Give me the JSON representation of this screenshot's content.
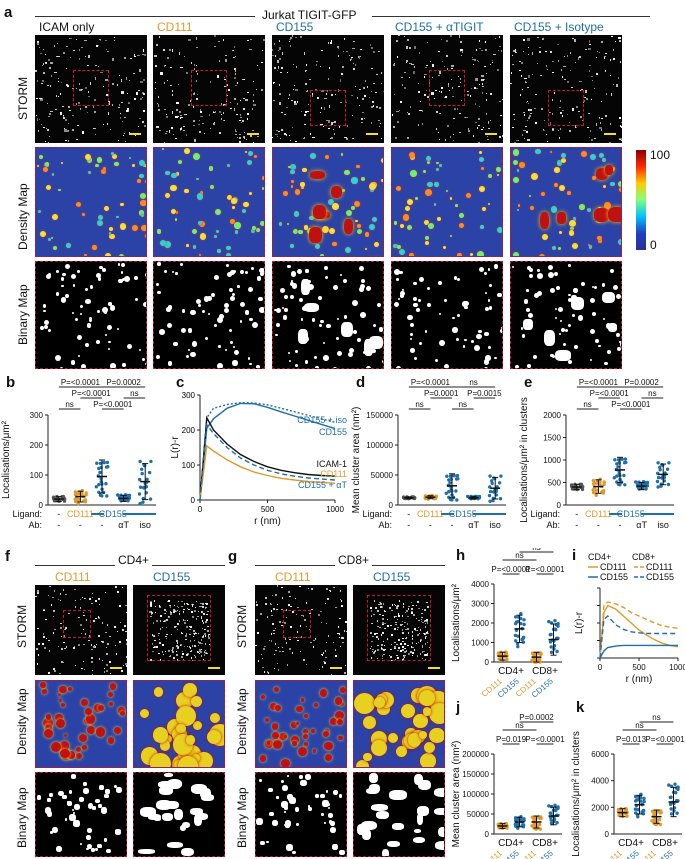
{
  "panel_a": {
    "label": "a",
    "title": "Jurkat TIGIT-GFP",
    "columns": [
      "ICAM only",
      "CD111",
      "CD155",
      "CD155 + αTIGIT",
      "CD155 + Isotype"
    ],
    "rows": [
      "STORM",
      "Density Map",
      "Binary Map"
    ],
    "colorbar": {
      "max": "100",
      "min": "0"
    }
  },
  "panel_b": {
    "label": "b",
    "ylabel": "Localisations/μm²",
    "yticks": [
      "0",
      "100",
      "200",
      "300"
    ],
    "stats": [
      "P=<0.0001",
      "ns",
      "P=<0.0001",
      "P=0.0002",
      "ns",
      "P=<0.0001"
    ],
    "ligand_label": "Ligand:",
    "ab_label": "Ab:",
    "ligand_vals": [
      "-",
      "CD111",
      "CD155"
    ],
    "ab_vals": [
      "-",
      "-",
      "-",
      "αT",
      "iso"
    ]
  },
  "panel_c": {
    "label": "c",
    "ylabel": "L(r)-r",
    "xlabel": "r (nm)",
    "legend": [
      "CD155 + iso",
      "CD155",
      "ICAM-1",
      "CD111",
      "CD155 + αT"
    ]
  },
  "panel_d": {
    "label": "d",
    "ylabel": "Mean cluster area (nm²)",
    "yticks": [
      "0",
      "50000",
      "100000",
      "150000"
    ],
    "stats": [
      "P=<0.0001",
      "ns",
      "P=0.0001",
      "ns",
      "P=0.0015",
      "ns",
      "P=<0.0001"
    ],
    "ligand_label": "Ligand:",
    "ab_label": "Ab:",
    "ligand_vals": [
      "-",
      "CD111",
      "CD155"
    ],
    "ab_vals": [
      "-",
      "-",
      "-",
      "αT",
      "iso"
    ]
  },
  "panel_e": {
    "label": "e",
    "ylabel": "Localisations/μm² in clusters",
    "yticks": [
      "0",
      "500",
      "1000",
      "1500",
      "2000"
    ],
    "stats": [
      "P=<0.0001",
      "ns",
      "P=<0.0001",
      "P=0.0002",
      "ns",
      "P=<0.0001"
    ],
    "ligand_label": "Ligand:",
    "ab_label": "Ab:",
    "ligand_vals": [
      "-",
      "CD111",
      "CD155"
    ],
    "ab_vals": [
      "-",
      "-",
      "-",
      "αT",
      "iso"
    ]
  },
  "panel_f": {
    "label": "f",
    "title": "CD4+",
    "columns": [
      "CD111",
      "CD155"
    ],
    "rows": [
      "STORM",
      "Density Map",
      "Binary Map"
    ]
  },
  "panel_g": {
    "label": "g",
    "title": "CD8+",
    "columns": [
      "CD111",
      "CD155"
    ],
    "rows": [
      "STORM",
      "Density Map",
      "Binary Map"
    ]
  },
  "panel_h": {
    "label": "h",
    "ylabel": "Localisations/μm²",
    "yticks": [
      "0",
      "1000",
      "2000",
      "3000",
      "4000"
    ],
    "stats": [
      "ns",
      "ns",
      "P=<0.0001",
      "P=<0.0001"
    ],
    "groups": [
      "CD4+",
      "CD8+"
    ],
    "sub": [
      "CD111",
      "CD155",
      "CD111",
      "CD155"
    ]
  },
  "panel_i": {
    "label": "i",
    "ylabel": "L(r)-r",
    "xlabel": "r (nm)",
    "xticks": [
      "0",
      "500",
      "1000"
    ],
    "yticks": [
      "0",
      "50",
      "100",
      "150",
      "200"
    ],
    "legend_head": [
      "CD4+",
      "CD8+"
    ],
    "legend": [
      "CD111",
      "CD111",
      "CD155",
      "CD155"
    ]
  },
  "panel_j": {
    "label": "j",
    "ylabel": "Mean cluster area (nm²)",
    "yticks": [
      "0",
      "50000",
      "100000",
      "150000",
      "200000"
    ],
    "stats": [
      "ns",
      "P=0.0002",
      "P=0.019",
      "P=<0.0001",
      "ns"
    ],
    "groups": [
      "CD4+",
      "CD8+"
    ],
    "sub": [
      "CD111",
      "CD155",
      "CD111",
      "CD155"
    ]
  },
  "panel_k": {
    "label": "k",
    "ylabel": "Localisations/μm² in clusters",
    "yticks": [
      "0",
      "2000",
      "4000",
      "6000"
    ],
    "stats": [
      "ns",
      "ns",
      "P=0.013",
      "P=<0.0001"
    ],
    "groups": [
      "CD4+",
      "CD8+"
    ],
    "sub": [
      "CD111",
      "CD155",
      "CD111",
      "CD155"
    ]
  },
  "chart_data": [
    {
      "type": "line",
      "panel": "c",
      "ylabel": "L(r)-r",
      "xlabel": "r (nm)",
      "xlim": [
        0,
        1000
      ],
      "ylim": [
        0,
        300
      ],
      "xticks": [
        0,
        500,
        1000
      ],
      "yticks": [
        0,
        100,
        200,
        300
      ],
      "x": [
        0,
        50,
        100,
        200,
        300,
        400,
        500,
        600,
        700,
        800,
        900,
        1000
      ],
      "series": [
        {
          "name": "CD155 + iso",
          "values": [
            0,
            235,
            262,
            273,
            278,
            277,
            272,
            262,
            252,
            242,
            232,
            222
          ]
        },
        {
          "name": "CD155",
          "values": [
            0,
            205,
            232,
            262,
            276,
            275,
            265,
            252,
            240,
            228,
            216,
            204
          ]
        },
        {
          "name": "ICAM-1",
          "values": [
            0,
            235,
            200,
            160,
            130,
            110,
            95,
            85,
            78,
            73,
            70,
            68
          ]
        },
        {
          "name": "CD111",
          "values": [
            0,
            155,
            140,
            115,
            95,
            80,
            70,
            62,
            57,
            53,
            50,
            48
          ]
        },
        {
          "name": "CD155 + αT",
          "values": [
            0,
            215,
            190,
            150,
            120,
            100,
            85,
            75,
            68,
            63,
            60,
            57
          ]
        }
      ]
    },
    {
      "type": "line",
      "panel": "i",
      "ylabel": "L(r)-r",
      "xlabel": "r (nm)",
      "xlim": [
        0,
        1000
      ],
      "ylim": [
        0,
        200
      ],
      "x": [
        0,
        50,
        100,
        200,
        300,
        400,
        500,
        600,
        700,
        800,
        900,
        1000
      ],
      "series": [
        {
          "name": "CD4+ CD111",
          "values": [
            0,
            130,
            150,
            140,
            120,
            100,
            80,
            65,
            52,
            42,
            36,
            32
          ]
        },
        {
          "name": "CD8+ CD111",
          "values": [
            0,
            150,
            160,
            155,
            145,
            130,
            120,
            110,
            100,
            92,
            88,
            85
          ]
        },
        {
          "name": "CD4+ CD155",
          "values": [
            0,
            20,
            30,
            34,
            36,
            36,
            36,
            36,
            36,
            36,
            36,
            36
          ]
        },
        {
          "name": "CD8+ CD155",
          "values": [
            0,
            110,
            120,
            95,
            82,
            75,
            72,
            70,
            70,
            70,
            70,
            70
          ]
        }
      ]
    },
    {
      "type": "scatter",
      "panel": "b",
      "ylim": [
        0,
        300
      ],
      "categories": [
        "ICAM only",
        "CD111",
        "CD155",
        "CD155 + αT",
        "CD155 + iso"
      ],
      "means": [
        20,
        28,
        95,
        22,
        78
      ],
      "sd": [
        8,
        18,
        55,
        10,
        60
      ]
    },
    {
      "type": "scatter",
      "panel": "d",
      "ylim": [
        0,
        150000
      ],
      "categories": [
        "ICAM only",
        "CD111",
        "CD155",
        "CD155 + αT",
        "CD155 + iso"
      ],
      "means": [
        12000,
        13000,
        32000,
        12000,
        28000
      ],
      "sd": [
        1500,
        2500,
        20000,
        2000,
        18000
      ]
    },
    {
      "type": "scatter",
      "panel": "e",
      "ylim": [
        0,
        2000
      ],
      "categories": [
        "ICAM only",
        "CD111",
        "CD155",
        "CD155 + αT",
        "CD155 + iso"
      ],
      "means": [
        400,
        410,
        780,
        420,
        680
      ],
      "sd": [
        60,
        150,
        280,
        80,
        230
      ]
    },
    {
      "type": "scatter",
      "panel": "h",
      "ylim": [
        0,
        4000
      ],
      "categories": [
        "CD4+ CD111",
        "CD4+ CD155",
        "CD8+ CD111",
        "CD8+ CD155"
      ],
      "means": [
        300,
        1700,
        250,
        1150
      ],
      "sd": [
        200,
        700,
        250,
        800
      ]
    },
    {
      "type": "scatter",
      "panel": "j",
      "ylim": [
        0,
        200000
      ],
      "categories": [
        "CD4+ CD111",
        "CD4+ CD155",
        "CD8+ CD111",
        "CD8+ CD155"
      ],
      "means": [
        20000,
        30000,
        30000,
        45000
      ],
      "sd": [
        6000,
        12000,
        15000,
        22000
      ]
    },
    {
      "type": "scatter",
      "panel": "k",
      "ylim": [
        0,
        6000
      ],
      "categories": [
        "CD4+ CD111",
        "CD4+ CD155",
        "CD8+ CD111",
        "CD8+ CD155"
      ],
      "means": [
        1600,
        2200,
        1300,
        2400
      ],
      "sd": [
        300,
        700,
        500,
        1100
      ]
    }
  ]
}
